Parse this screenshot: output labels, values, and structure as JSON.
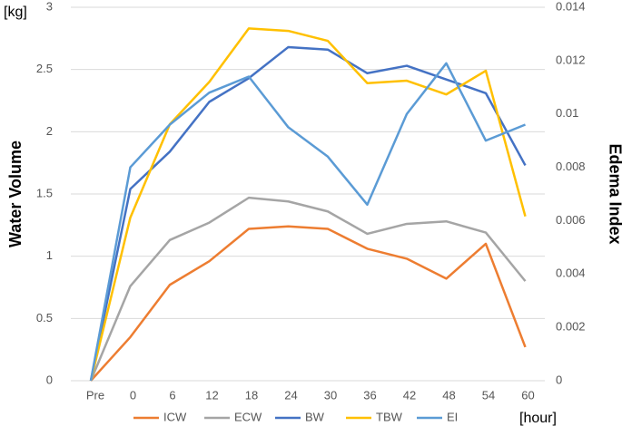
{
  "chart_data": {
    "type": "line",
    "y_unit": "[kg]",
    "x_unit": "[hour]",
    "ylabel": "Water Volume",
    "y2label": "Edema Index",
    "categories": [
      "Pre",
      "0",
      "6",
      "12",
      "18",
      "24",
      "30",
      "36",
      "42",
      "48",
      "54",
      "60"
    ],
    "ylim": [
      0,
      3
    ],
    "yticks": [
      0,
      0.5,
      1,
      1.5,
      2,
      2.5,
      3
    ],
    "y2lim": [
      0,
      0.014
    ],
    "y2ticks": [
      0,
      0.002,
      0.004,
      0.006,
      0.008,
      0.01,
      0.012,
      0.014
    ],
    "grid": true,
    "legend": "bottom",
    "series": [
      {
        "name": "ICW",
        "color": "#ed7d31",
        "values": [
          0,
          0.35,
          0.77,
          0.96,
          1.22,
          1.24,
          1.22,
          1.06,
          0.98,
          0.82,
          1.1,
          0.27
        ]
      },
      {
        "name": "ECW",
        "color": "#a5a5a5",
        "values": [
          0,
          0.76,
          1.13,
          1.27,
          1.47,
          1.44,
          1.36,
          1.18,
          1.26,
          1.28,
          1.19,
          0.8
        ]
      },
      {
        "name": "BW",
        "color": "#4472c4",
        "values": [
          0,
          1.54,
          1.84,
          2.24,
          2.43,
          2.68,
          2.66,
          2.47,
          2.53,
          2.42,
          2.31,
          1.73
        ]
      },
      {
        "name": "TBW",
        "color": "#ffc000",
        "values": [
          0,
          1.31,
          2.06,
          2.4,
          2.83,
          2.81,
          2.73,
          2.39,
          2.41,
          2.3,
          2.49,
          1.32
        ]
      },
      {
        "name": "EI",
        "color": "#5b9bd5",
        "axis": "y2",
        "values": [
          0,
          0.008,
          0.0096,
          0.0108,
          0.0114,
          0.0095,
          0.0084,
          0.0066,
          0.01,
          0.0119,
          0.009,
          0.0096
        ]
      }
    ]
  }
}
